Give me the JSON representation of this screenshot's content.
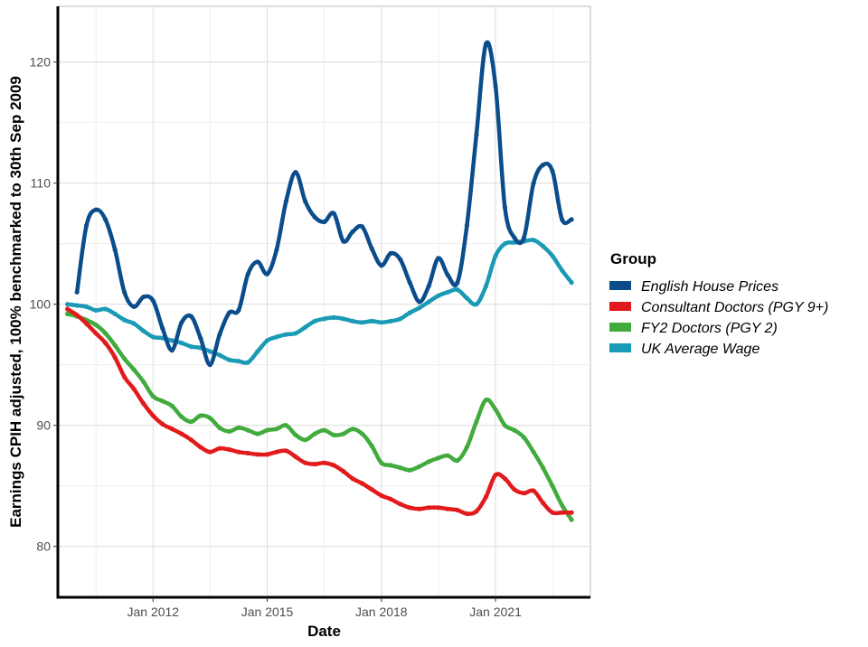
{
  "chart_data": {
    "type": "line",
    "xlabel": "Date",
    "ylabel": "Earnings CPIH adjusted, 100% benchmarked to 30th Sep 2009",
    "xlim": [
      "2009-07-01",
      "2023-07-01"
    ],
    "ylim": [
      75.8,
      124.6
    ],
    "x_ticks": [
      {
        "date": "2012-01-01",
        "label": "Jan 2012"
      },
      {
        "date": "2015-01-01",
        "label": "Jan 2015"
      },
      {
        "date": "2018-01-01",
        "label": "Jan 2018"
      },
      {
        "date": "2021-01-01",
        "label": "Jan 2021"
      }
    ],
    "y_ticks": [
      80,
      90,
      100,
      110,
      120
    ],
    "grid": true,
    "legend": {
      "title": "Group",
      "position": "right"
    },
    "series": [
      {
        "name": "English House Prices",
        "color": "#0b4d8b",
        "x": [
          "2010-01-01",
          "2010-04-01",
          "2010-07-01",
          "2010-10-01",
          "2011-01-01",
          "2011-04-01",
          "2011-07-01",
          "2011-10-01",
          "2012-01-01",
          "2012-04-01",
          "2012-07-01",
          "2012-10-01",
          "2013-01-01",
          "2013-04-01",
          "2013-07-01",
          "2013-10-01",
          "2014-01-01",
          "2014-04-01",
          "2014-07-01",
          "2014-10-01",
          "2015-01-01",
          "2015-04-01",
          "2015-07-01",
          "2015-10-01",
          "2016-01-01",
          "2016-04-01",
          "2016-07-01",
          "2016-10-01",
          "2017-01-01",
          "2017-04-01",
          "2017-07-01",
          "2017-10-01",
          "2018-01-01",
          "2018-04-01",
          "2018-07-01",
          "2018-10-01",
          "2019-01-01",
          "2019-04-01",
          "2019-07-01",
          "2019-10-01",
          "2020-01-01",
          "2020-04-01",
          "2020-07-01",
          "2020-10-01",
          "2021-01-01",
          "2021-04-01",
          "2021-07-01",
          "2021-10-01",
          "2022-01-01",
          "2022-04-01",
          "2022-07-01",
          "2022-10-01",
          "2023-01-01"
        ],
        "y": [
          101.0,
          106.5,
          107.8,
          107.0,
          104.5,
          101.0,
          99.8,
          100.6,
          100.3,
          98.0,
          96.2,
          98.5,
          99.0,
          97.2,
          95.0,
          97.5,
          99.3,
          99.5,
          102.5,
          103.5,
          102.5,
          104.5,
          108.5,
          110.9,
          108.5,
          107.2,
          106.8,
          107.5,
          105.2,
          106.0,
          106.4,
          104.6,
          103.2,
          104.2,
          103.7,
          101.8,
          100.2,
          101.5,
          103.8,
          102.4,
          101.8,
          106.5,
          114.0,
          121.5,
          118.0,
          108.0,
          105.5,
          105.5,
          110.0,
          111.5,
          111.0,
          107.0,
          107.0
        ]
      },
      {
        "name": "Consultant Doctors (PGY 9+)",
        "color": "#e31a1c",
        "x": [
          "2009-10-01",
          "2010-01-01",
          "2010-04-01",
          "2010-07-01",
          "2010-10-01",
          "2011-01-01",
          "2011-04-01",
          "2011-07-01",
          "2011-10-01",
          "2012-01-01",
          "2012-04-01",
          "2012-07-01",
          "2012-10-01",
          "2013-01-01",
          "2013-04-01",
          "2013-07-01",
          "2013-10-01",
          "2014-01-01",
          "2014-04-01",
          "2014-07-01",
          "2014-10-01",
          "2015-01-01",
          "2015-04-01",
          "2015-07-01",
          "2015-10-01",
          "2016-01-01",
          "2016-04-01",
          "2016-07-01",
          "2016-10-01",
          "2017-01-01",
          "2017-04-01",
          "2017-07-01",
          "2017-10-01",
          "2018-01-01",
          "2018-04-01",
          "2018-07-01",
          "2018-10-01",
          "2019-01-01",
          "2019-04-01",
          "2019-07-01",
          "2019-10-01",
          "2020-01-01",
          "2020-04-01",
          "2020-07-01",
          "2020-10-01",
          "2021-01-01",
          "2021-04-01",
          "2021-07-01",
          "2021-10-01",
          "2022-01-01",
          "2022-04-01",
          "2022-07-01",
          "2022-10-01",
          "2023-01-01"
        ],
        "y": [
          99.6,
          99.1,
          98.4,
          97.6,
          96.8,
          95.6,
          94.0,
          93.0,
          91.8,
          90.8,
          90.1,
          89.7,
          89.3,
          88.8,
          88.2,
          87.8,
          88.1,
          88.0,
          87.8,
          87.7,
          87.6,
          87.6,
          87.8,
          87.9,
          87.4,
          86.9,
          86.8,
          86.9,
          86.7,
          86.2,
          85.6,
          85.2,
          84.7,
          84.2,
          83.9,
          83.5,
          83.2,
          83.1,
          83.2,
          83.2,
          83.1,
          83.0,
          82.7,
          82.9,
          84.1,
          85.9,
          85.6,
          84.7,
          84.4,
          84.6,
          83.6,
          82.8,
          82.8,
          82.8
        ]
      },
      {
        "name": "FY2 Doctors (PGY 2)",
        "color": "#41ab3d",
        "x": [
          "2009-10-01",
          "2010-01-01",
          "2010-04-01",
          "2010-07-01",
          "2010-10-01",
          "2011-01-01",
          "2011-04-01",
          "2011-07-01",
          "2011-10-01",
          "2012-01-01",
          "2012-04-01",
          "2012-07-01",
          "2012-10-01",
          "2013-01-01",
          "2013-04-01",
          "2013-07-01",
          "2013-10-01",
          "2014-01-01",
          "2014-04-01",
          "2014-07-01",
          "2014-10-01",
          "2015-01-01",
          "2015-04-01",
          "2015-07-01",
          "2015-10-01",
          "2016-01-01",
          "2016-04-01",
          "2016-07-01",
          "2016-10-01",
          "2017-01-01",
          "2017-04-01",
          "2017-07-01",
          "2017-10-01",
          "2018-01-01",
          "2018-04-01",
          "2018-07-01",
          "2018-10-01",
          "2019-01-01",
          "2019-04-01",
          "2019-07-01",
          "2019-10-01",
          "2020-01-01",
          "2020-04-01",
          "2020-07-01",
          "2020-10-01",
          "2021-01-01",
          "2021-04-01",
          "2021-07-01",
          "2021-10-01",
          "2022-01-01",
          "2022-04-01",
          "2022-07-01",
          "2022-10-01",
          "2023-01-01"
        ],
        "y": [
          99.2,
          99.0,
          98.7,
          98.3,
          97.6,
          96.6,
          95.5,
          94.6,
          93.6,
          92.4,
          92.0,
          91.6,
          90.7,
          90.3,
          90.8,
          90.6,
          89.8,
          89.5,
          89.8,
          89.6,
          89.3,
          89.6,
          89.7,
          90.0,
          89.2,
          88.8,
          89.3,
          89.6,
          89.2,
          89.3,
          89.7,
          89.3,
          88.3,
          86.9,
          86.7,
          86.5,
          86.3,
          86.6,
          87.0,
          87.3,
          87.5,
          87.1,
          88.2,
          90.3,
          92.1,
          91.3,
          90.0,
          89.6,
          89.0,
          87.8,
          86.5,
          85.0,
          83.4,
          82.2
        ]
      },
      {
        "name": "UK Average Wage",
        "color": "#1a9ab5",
        "x": [
          "2009-10-01",
          "2010-01-01",
          "2010-04-01",
          "2010-07-01",
          "2010-10-01",
          "2011-01-01",
          "2011-04-01",
          "2011-07-01",
          "2011-10-01",
          "2012-01-01",
          "2012-04-01",
          "2012-07-01",
          "2012-10-01",
          "2013-01-01",
          "2013-04-01",
          "2013-07-01",
          "2013-10-01",
          "2014-01-01",
          "2014-04-01",
          "2014-07-01",
          "2014-10-01",
          "2015-01-01",
          "2015-04-01",
          "2015-07-01",
          "2015-10-01",
          "2016-01-01",
          "2016-04-01",
          "2016-07-01",
          "2016-10-01",
          "2017-01-01",
          "2017-04-01",
          "2017-07-01",
          "2017-10-01",
          "2018-01-01",
          "2018-04-01",
          "2018-07-01",
          "2018-10-01",
          "2019-01-01",
          "2019-04-01",
          "2019-07-01",
          "2019-10-01",
          "2020-01-01",
          "2020-04-01",
          "2020-07-01",
          "2020-10-01",
          "2021-01-01",
          "2021-04-01",
          "2021-07-01",
          "2021-10-01",
          "2022-01-01",
          "2022-04-01",
          "2022-07-01",
          "2022-10-01",
          "2023-01-01"
        ],
        "y": [
          100.0,
          99.9,
          99.8,
          99.5,
          99.6,
          99.2,
          98.7,
          98.4,
          97.8,
          97.3,
          97.2,
          97.0,
          96.8,
          96.5,
          96.4,
          96.1,
          95.8,
          95.4,
          95.3,
          95.2,
          96.1,
          97.0,
          97.3,
          97.5,
          97.6,
          98.1,
          98.6,
          98.8,
          98.9,
          98.8,
          98.6,
          98.5,
          98.6,
          98.5,
          98.6,
          98.8,
          99.3,
          99.7,
          100.2,
          100.7,
          101.0,
          101.2,
          100.5,
          100.0,
          101.5,
          104.0,
          105.0,
          105.1,
          105.2,
          105.3,
          104.8,
          104.0,
          102.8,
          101.8
        ]
      }
    ]
  }
}
